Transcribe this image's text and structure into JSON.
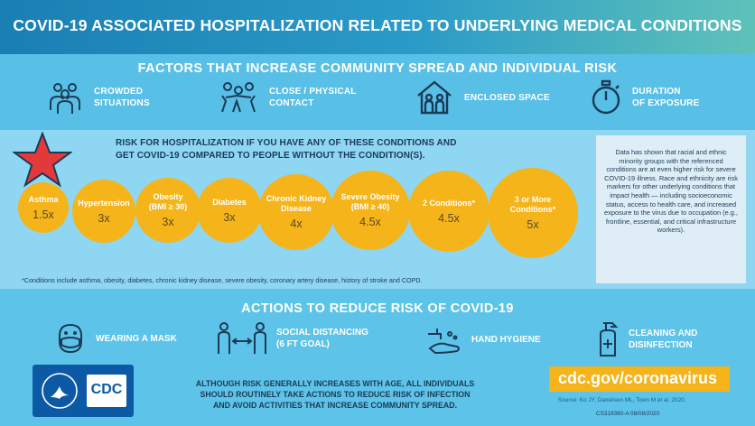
{
  "header": {
    "title_main": "COVID-19 ASSOCIATED HOSPITALIZATION RELATED TO ",
    "title_highlight": "UNDERLYING MEDICAL CONDITIONS"
  },
  "factors": {
    "title": "FACTORS THAT INCREASE COMMUNITY SPREAD AND INDIVIDUAL RISK",
    "items": [
      {
        "label": "CROWDED\nSITUATIONS",
        "icon": "crowd-icon"
      },
      {
        "label": "CLOSE / PHYSICAL\nCONTACT",
        "icon": "contact-icon"
      },
      {
        "label": "ENCLOSED SPACE",
        "icon": "house-icon"
      },
      {
        "label": "DURATION\nOF EXPOSURE",
        "icon": "stopwatch-icon"
      }
    ]
  },
  "risk": {
    "title": "RISK FOR HOSPITALIZATION IF YOU HAVE ANY OF THESE CONDITIONS AND\nGET COVID-19 COMPARED TO PEOPLE WITHOUT THE CONDITION(S).",
    "conditions": [
      {
        "name": "Asthma",
        "value": "1.5x"
      },
      {
        "name": "Hypertension",
        "value": "3x"
      },
      {
        "name": "Obesity\n(BMI ≥ 30)",
        "value": "3x"
      },
      {
        "name": "Diabetes",
        "value": "3x"
      },
      {
        "name": "Chronic Kidney\nDisease",
        "value": "4x"
      },
      {
        "name": "Severe Obesity\n(BMI ≥ 40)",
        "value": "4.5x"
      },
      {
        "name": "2 Conditions*",
        "value": "4.5x"
      },
      {
        "name": "3 or More\nConditions*",
        "value": "5x"
      }
    ],
    "footnote": "*Conditions include asthma, obesity, diabetes, chronic kidney disease, severe obesity, coronary artery disease, history of stroke and COPD.",
    "star_color": "#e23a3a",
    "bubble_color": "#f4b41a"
  },
  "note": "Data has shown that racial and ethnic minority groups with the referenced conditions are at even higher risk for severe COVID-19 illness. Race and ethnicity are risk markers for other underlying conditions that impact health — including socioeconomic status, access to health care, and increased exposure to the virus due to occupation (e.g., frontline, essential, and critical infrastructure workers).",
  "actions": {
    "title": "ACTIONS TO REDUCE RISK OF COVID-19",
    "items": [
      {
        "label": "WEARING A MASK",
        "icon": "mask-icon"
      },
      {
        "label": "SOCIAL DISTANCING\n(6 FT GOAL)",
        "icon": "distancing-icon"
      },
      {
        "label": "HAND HYGIENE",
        "icon": "handwash-icon"
      },
      {
        "label": "CLEANING AND\nDISINFECTION",
        "icon": "spray-bottle-icon"
      }
    ]
  },
  "footer": {
    "message": "ALTHOUGH RISK GENERALLY INCREASES WITH AGE, ALL INDIVIDUALS\nSHOULD ROUTINELY TAKE ACTIONS TO REDUCE RISK OF INFECTION\nAND AVOID ACTIVITIES THAT INCREASE COMMUNITY SPREAD.",
    "url": "cdc.gov/coronavirus",
    "source": "Source: Ko JY, Danielson ML, Town M et al. 2020.",
    "code": "CS319360-A 08/08/2020",
    "logo_text": "CDC"
  }
}
